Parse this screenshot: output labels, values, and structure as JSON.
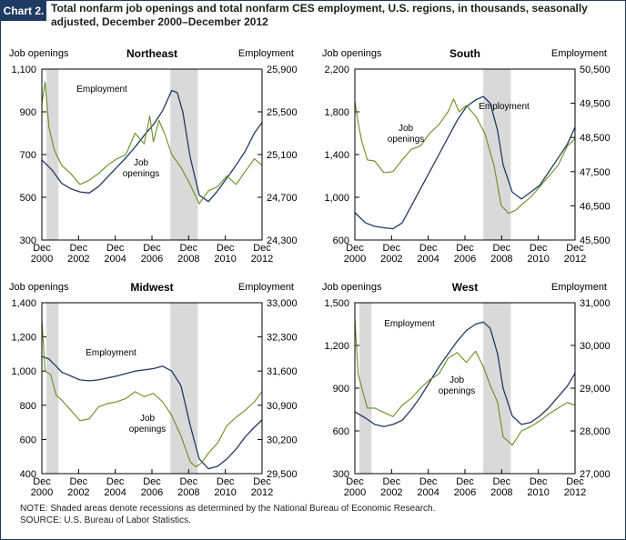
{
  "header": {
    "tag": "Chart 2.",
    "title": "Total nonfarm job openings and total nonfarm CES employment, U.S. regions, in thousands, seasonally adjusted, December 2000–December 2012"
  },
  "notes": {
    "note": "NOTE:  Shaded areas denote recessions as determined by the National Bureau of Economic Research.",
    "source": "SOURCE:  U.S. Bureau of Labor Statistics."
  },
  "colors": {
    "employment": "#1f3a63",
    "job_openings": "#6a8c1f",
    "recession": "#d9d9d9",
    "axis": "#000000"
  },
  "chart_data": [
    {
      "type": "line",
      "title": "Northeast",
      "left_axis_label": "Job openings",
      "right_axis_label": "Employment",
      "x_ticks": [
        "Dec 2000",
        "Dec 2002",
        "Dec 2004",
        "Dec 2006",
        "Dec 2008",
        "Dec 2010",
        "Dec 2012"
      ],
      "x_range": [
        2000.92,
        2012.92
      ],
      "left_ylim": [
        300,
        1100
      ],
      "left_ticks": [
        300,
        500,
        700,
        900,
        1100
      ],
      "right_ylim": [
        24300,
        25900
      ],
      "right_ticks": [
        "24,300",
        "24,700",
        "25,100",
        "25,500",
        "25,900"
      ],
      "recessions": [
        [
          2001.17,
          2001.83
        ],
        [
          2007.92,
          2009.42
        ]
      ],
      "series": [
        {
          "name": "Employment",
          "axis": "right",
          "x": [
            2000.92,
            2001.5,
            2002.0,
            2002.5,
            2003.0,
            2003.5,
            2004.0,
            2004.5,
            2005.0,
            2005.5,
            2006.0,
            2006.5,
            2007.0,
            2007.5,
            2008.0,
            2008.3,
            2008.6,
            2009.0,
            2009.5,
            2010.0,
            2010.5,
            2011.0,
            2011.5,
            2012.0,
            2012.5,
            2012.92
          ],
          "y": [
            25050,
            24950,
            24830,
            24780,
            24750,
            24740,
            24800,
            24890,
            24980,
            25070,
            25170,
            25280,
            25380,
            25510,
            25700,
            25680,
            25500,
            25080,
            24720,
            24660,
            24760,
            24880,
            25000,
            25130,
            25300,
            25400
          ]
        },
        {
          "name": "Job openings",
          "axis": "left",
          "x": [
            2000.92,
            2001.1,
            2001.3,
            2001.6,
            2002.0,
            2002.5,
            2003.0,
            2003.5,
            2004.0,
            2004.5,
            2005.0,
            2005.5,
            2006.0,
            2006.5,
            2006.8,
            2007.0,
            2007.3,
            2007.6,
            2008.0,
            2008.5,
            2009.0,
            2009.5,
            2010.0,
            2010.5,
            2011.0,
            2011.5,
            2012.0,
            2012.5,
            2012.92
          ],
          "y": [
            940,
            1040,
            830,
            720,
            650,
            610,
            560,
            580,
            610,
            650,
            680,
            700,
            800,
            750,
            880,
            760,
            860,
            800,
            700,
            640,
            560,
            470,
            530,
            550,
            600,
            560,
            620,
            680,
            650
          ]
        }
      ],
      "labels": {
        "employment": "Employment",
        "job_openings_1": "Job",
        "job_openings_2": "openings"
      }
    },
    {
      "type": "line",
      "title": "South",
      "left_axis_label": "Job openings",
      "right_axis_label": "Employment",
      "x_ticks": [
        "Dec 2000",
        "Dec 2002",
        "Dec 2004",
        "Dec 2006",
        "Dec 2008",
        "Dec 2010",
        "Dec 2012"
      ],
      "x_range": [
        2000.92,
        2012.92
      ],
      "left_ylim": [
        600,
        2200
      ],
      "left_ticks": [
        600,
        "1,000",
        "1,400",
        "1,800",
        "2,200"
      ],
      "right_ylim": [
        45500,
        50500
      ],
      "right_ticks": [
        "45,500",
        "46,500",
        "47,500",
        "48,500",
        "49,500",
        "50,500"
      ],
      "recessions": [
        [
          2007.92,
          2009.42
        ]
      ],
      "series": [
        {
          "name": "Employment",
          "axis": "right",
          "x": [
            2000.92,
            2001.5,
            2002.0,
            2002.5,
            2003.0,
            2003.5,
            2004.0,
            2004.5,
            2005.0,
            2005.5,
            2006.0,
            2006.5,
            2007.0,
            2007.5,
            2007.92,
            2008.3,
            2008.7,
            2009.0,
            2009.5,
            2010.0,
            2010.5,
            2011.0,
            2011.5,
            2012.0,
            2012.5,
            2012.92
          ],
          "y": [
            46300,
            46000,
            45900,
            45860,
            45830,
            46000,
            46500,
            47000,
            47500,
            48000,
            48500,
            49000,
            49400,
            49600,
            49700,
            49500,
            48700,
            47700,
            46900,
            46700,
            46900,
            47100,
            47500,
            47900,
            48300,
            48800
          ]
        },
        {
          "name": "Job openings",
          "axis": "left",
          "x": [
            2000.92,
            2001.1,
            2001.3,
            2001.6,
            2002.0,
            2002.5,
            2003.0,
            2003.5,
            2004.0,
            2004.5,
            2005.0,
            2005.5,
            2006.0,
            2006.3,
            2006.6,
            2007.0,
            2007.5,
            2008.0,
            2008.5,
            2008.9,
            2009.3,
            2009.7,
            2010.0,
            2010.5,
            2011.0,
            2011.5,
            2012.0,
            2012.5,
            2012.92
          ],
          "y": [
            1900,
            1700,
            1520,
            1350,
            1340,
            1230,
            1240,
            1350,
            1450,
            1480,
            1600,
            1680,
            1800,
            1920,
            1800,
            1860,
            1760,
            1600,
            1300,
            920,
            850,
            880,
            930,
            1000,
            1100,
            1200,
            1300,
            1480,
            1550
          ]
        }
      ],
      "labels": {
        "employment": "Employment",
        "job_openings_1": "Job",
        "job_openings_2": "openings"
      }
    },
    {
      "type": "line",
      "title": "Midwest",
      "left_axis_label": "Job openings",
      "right_axis_label": "Employment",
      "x_ticks": [
        "Dec 2000",
        "Dec 2002",
        "Dec 2004",
        "Dec 2006",
        "Dec 2008",
        "Dec 2010",
        "Dec 2012"
      ],
      "x_range": [
        2000.92,
        2012.92
      ],
      "left_ylim": [
        400,
        1400
      ],
      "left_ticks": [
        400,
        600,
        800,
        "1,000",
        "1,200",
        "1,400"
      ],
      "right_ylim": [
        29500,
        33000
      ],
      "right_ticks": [
        "29,500",
        "30,200",
        "30,900",
        "31,600",
        "32,300",
        "33,000"
      ],
      "recessions": [
        [
          2001.17,
          2001.83
        ],
        [
          2007.92,
          2009.42
        ]
      ],
      "series": [
        {
          "name": "Employment",
          "axis": "right",
          "x": [
            2000.92,
            2001.3,
            2001.7,
            2002.0,
            2002.5,
            2003.0,
            2003.5,
            2004.0,
            2005.0,
            2006.0,
            2007.0,
            2007.5,
            2008.0,
            2008.5,
            2009.0,
            2009.5,
            2010.0,
            2010.5,
            2011.0,
            2011.5,
            2012.0,
            2012.5,
            2012.92
          ],
          "y": [
            31900,
            31850,
            31700,
            31580,
            31500,
            31420,
            31400,
            31420,
            31500,
            31600,
            31650,
            31700,
            31600,
            31300,
            30500,
            29800,
            29600,
            29650,
            29800,
            30000,
            30250,
            30450,
            30600
          ]
        },
        {
          "name": "Job openings",
          "axis": "left",
          "x": [
            2000.92,
            2001.1,
            2001.4,
            2001.7,
            2002.0,
            2002.5,
            2003.0,
            2003.5,
            2004.0,
            2004.5,
            2005.0,
            2005.5,
            2006.0,
            2006.5,
            2007.0,
            2007.5,
            2008.0,
            2008.5,
            2009.0,
            2009.3,
            2009.6,
            2010.0,
            2010.5,
            2011.0,
            2011.5,
            2012.0,
            2012.5,
            2012.92
          ],
          "y": [
            1300,
            1000,
            980,
            860,
            830,
            770,
            710,
            720,
            790,
            810,
            820,
            840,
            880,
            850,
            870,
            820,
            740,
            620,
            470,
            440,
            460,
            520,
            580,
            680,
            730,
            770,
            820,
            880
          ]
        }
      ],
      "labels": {
        "employment": "Employment",
        "job_openings_1": "Job",
        "job_openings_2": "openings"
      }
    },
    {
      "type": "line",
      "title": "West",
      "left_axis_label": "Job openings",
      "right_axis_label": "Employment",
      "x_ticks": [
        "Dec 2000",
        "Dec 2002",
        "Dec 2004",
        "Dec 2006",
        "Dec 2008",
        "Dec 2010",
        "Dec 2012"
      ],
      "x_range": [
        2000.92,
        2012.92
      ],
      "left_ylim": [
        300,
        1500
      ],
      "left_ticks": [
        300,
        600,
        900,
        "1,200",
        "1,500"
      ],
      "right_ylim": [
        27000,
        31000
      ],
      "right_ticks": [
        "27,000",
        "28,000",
        "29,000",
        "30,000",
        "31,000"
      ],
      "recessions": [
        [
          2001.17,
          2001.83
        ],
        [
          2007.92,
          2009.42
        ]
      ],
      "series": [
        {
          "name": "Employment",
          "axis": "right",
          "x": [
            2000.92,
            2001.5,
            2002.0,
            2002.5,
            2003.0,
            2003.5,
            2004.0,
            2004.5,
            2005.0,
            2005.5,
            2006.0,
            2006.5,
            2007.0,
            2007.5,
            2007.92,
            2008.3,
            2008.7,
            2009.0,
            2009.5,
            2010.0,
            2010.5,
            2011.0,
            2011.5,
            2012.0,
            2012.5,
            2012.92
          ],
          "y": [
            28450,
            28300,
            28150,
            28100,
            28150,
            28250,
            28500,
            28800,
            29150,
            29500,
            29800,
            30100,
            30350,
            30500,
            30550,
            30400,
            29800,
            29000,
            28350,
            28150,
            28200,
            28350,
            28550,
            28800,
            29050,
            29350
          ]
        },
        {
          "name": "Job openings",
          "axis": "left",
          "x": [
            2000.92,
            2001.1,
            2001.3,
            2001.6,
            2002.0,
            2002.5,
            2003.0,
            2003.5,
            2004.0,
            2004.5,
            2005.0,
            2005.5,
            2006.0,
            2006.5,
            2007.0,
            2007.5,
            2007.92,
            2008.3,
            2008.7,
            2009.0,
            2009.5,
            2010.0,
            2010.5,
            2011.0,
            2011.5,
            2012.0,
            2012.5,
            2012.92
          ],
          "y": [
            1390,
            1000,
            900,
            760,
            760,
            730,
            700,
            780,
            830,
            900,
            960,
            1000,
            1110,
            1150,
            1080,
            1160,
            1050,
            920,
            800,
            560,
            500,
            600,
            630,
            670,
            720,
            760,
            800,
            780
          ]
        }
      ],
      "labels": {
        "employment": "Employment",
        "job_openings_1": "Job",
        "job_openings_2": "openings"
      }
    }
  ]
}
